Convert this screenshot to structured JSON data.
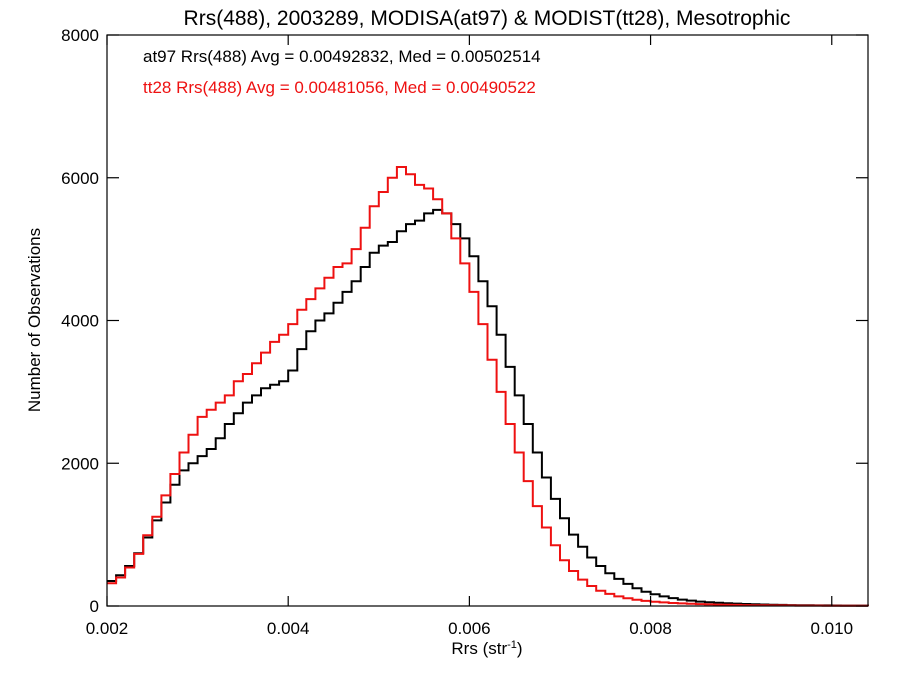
{
  "chart_data": {
    "type": "line",
    "step": true,
    "title": "Rrs(488), 2003289, MODISA(at97) & MODIST(tt28), Mesotrophic",
    "xlabel_main": "Rrs (str",
    "xlabel_sup": "-1",
    "xlabel_close": ")",
    "ylabel": "Number of Observations",
    "xlim": [
      0.002,
      0.0104
    ],
    "ylim": [
      0,
      8000
    ],
    "xticks": [
      0.002,
      0.004,
      0.006,
      0.008,
      0.01
    ],
    "xtick_labels": [
      "0.002",
      "0.004",
      "0.006",
      "0.008",
      "0.010"
    ],
    "yticks": [
      0,
      2000,
      4000,
      6000,
      8000
    ],
    "ytick_labels": [
      "0",
      "2000",
      "4000",
      "6000",
      "8000"
    ],
    "grid": false,
    "legend_position": "top-left",
    "legend": [
      {
        "text": "at97 Rrs(488) Avg = 0.00492832, Med = 0.00502514",
        "color": "#000000"
      },
      {
        "text": "tt28 Rrs(488) Avg = 0.00481056, Med = 0.00490522",
        "color": "#ee1111"
      }
    ],
    "series": [
      {
        "color": "#000000",
        "points": [
          [
            0.002,
            350
          ],
          [
            0.0021,
            430
          ],
          [
            0.0022,
            560
          ],
          [
            0.0023,
            740
          ],
          [
            0.0024,
            960
          ],
          [
            0.0025,
            1200
          ],
          [
            0.0026,
            1450
          ],
          [
            0.0027,
            1700
          ],
          [
            0.0028,
            1900
          ],
          [
            0.0029,
            2000
          ],
          [
            0.003,
            2100
          ],
          [
            0.0031,
            2200
          ],
          [
            0.0032,
            2350
          ],
          [
            0.0033,
            2550
          ],
          [
            0.0034,
            2700
          ],
          [
            0.0035,
            2850
          ],
          [
            0.0036,
            2950
          ],
          [
            0.0037,
            3050
          ],
          [
            0.0038,
            3100
          ],
          [
            0.0039,
            3150
          ],
          [
            0.004,
            3300
          ],
          [
            0.0041,
            3600
          ],
          [
            0.0042,
            3850
          ],
          [
            0.0043,
            4000
          ],
          [
            0.0044,
            4100
          ],
          [
            0.0045,
            4250
          ],
          [
            0.0046,
            4400
          ],
          [
            0.0047,
            4550
          ],
          [
            0.0048,
            4750
          ],
          [
            0.0049,
            4950
          ],
          [
            0.005,
            5050
          ],
          [
            0.0051,
            5100
          ],
          [
            0.0052,
            5250
          ],
          [
            0.0053,
            5350
          ],
          [
            0.0054,
            5400
          ],
          [
            0.0055,
            5500
          ],
          [
            0.0056,
            5550
          ],
          [
            0.0057,
            5500
          ],
          [
            0.0058,
            5350
          ],
          [
            0.0059,
            5150
          ],
          [
            0.006,
            4900
          ],
          [
            0.0061,
            4550
          ],
          [
            0.0062,
            4200
          ],
          [
            0.0063,
            3800
          ],
          [
            0.0064,
            3350
          ],
          [
            0.0065,
            2950
          ],
          [
            0.0066,
            2550
          ],
          [
            0.0067,
            2150
          ],
          [
            0.0068,
            1800
          ],
          [
            0.0069,
            1500
          ],
          [
            0.007,
            1230
          ],
          [
            0.0071,
            1000
          ],
          [
            0.0072,
            830
          ],
          [
            0.0073,
            680
          ],
          [
            0.0074,
            560
          ],
          [
            0.0075,
            460
          ],
          [
            0.0076,
            380
          ],
          [
            0.0077,
            310
          ],
          [
            0.0078,
            250
          ],
          [
            0.0079,
            200
          ],
          [
            0.008,
            165
          ],
          [
            0.0081,
            135
          ],
          [
            0.0082,
            110
          ],
          [
            0.0083,
            90
          ],
          [
            0.0084,
            75
          ],
          [
            0.0085,
            62
          ],
          [
            0.0086,
            52
          ],
          [
            0.0087,
            45
          ],
          [
            0.0088,
            38
          ],
          [
            0.0089,
            33
          ],
          [
            0.009,
            28
          ],
          [
            0.0091,
            24
          ],
          [
            0.0092,
            21
          ],
          [
            0.0093,
            18
          ],
          [
            0.0094,
            15
          ],
          [
            0.0095,
            13
          ],
          [
            0.0096,
            11
          ],
          [
            0.0097,
            10
          ],
          [
            0.0098,
            9
          ],
          [
            0.0099,
            8
          ],
          [
            0.01,
            7
          ],
          [
            0.0101,
            6
          ],
          [
            0.0102,
            5
          ],
          [
            0.0103,
            5
          ],
          [
            0.0104,
            4
          ]
        ]
      },
      {
        "color": "#ee1111",
        "points": [
          [
            0.002,
            320
          ],
          [
            0.0021,
            400
          ],
          [
            0.0022,
            540
          ],
          [
            0.0023,
            730
          ],
          [
            0.0024,
            990
          ],
          [
            0.0025,
            1250
          ],
          [
            0.0026,
            1550
          ],
          [
            0.0027,
            1850
          ],
          [
            0.0028,
            2150
          ],
          [
            0.0029,
            2400
          ],
          [
            0.003,
            2650
          ],
          [
            0.0031,
            2750
          ],
          [
            0.0032,
            2850
          ],
          [
            0.0033,
            2950
          ],
          [
            0.0034,
            3150
          ],
          [
            0.0035,
            3250
          ],
          [
            0.0036,
            3400
          ],
          [
            0.0037,
            3550
          ],
          [
            0.0038,
            3700
          ],
          [
            0.0039,
            3800
          ],
          [
            0.004,
            3950
          ],
          [
            0.0041,
            4150
          ],
          [
            0.0042,
            4300
          ],
          [
            0.0043,
            4450
          ],
          [
            0.0044,
            4600
          ],
          [
            0.0045,
            4750
          ],
          [
            0.0046,
            4800
          ],
          [
            0.0047,
            5000
          ],
          [
            0.0048,
            5300
          ],
          [
            0.0049,
            5600
          ],
          [
            0.005,
            5800
          ],
          [
            0.0051,
            6000
          ],
          [
            0.0052,
            6150
          ],
          [
            0.0053,
            6050
          ],
          [
            0.0054,
            5900
          ],
          [
            0.0055,
            5850
          ],
          [
            0.0056,
            5700
          ],
          [
            0.0057,
            5500
          ],
          [
            0.0058,
            5150
          ],
          [
            0.0059,
            4800
          ],
          [
            0.006,
            4400
          ],
          [
            0.0061,
            3950
          ],
          [
            0.0062,
            3450
          ],
          [
            0.0063,
            3000
          ],
          [
            0.0064,
            2550
          ],
          [
            0.0065,
            2150
          ],
          [
            0.0066,
            1750
          ],
          [
            0.0067,
            1400
          ],
          [
            0.0068,
            1100
          ],
          [
            0.0069,
            850
          ],
          [
            0.007,
            640
          ],
          [
            0.0071,
            490
          ],
          [
            0.0072,
            370
          ],
          [
            0.0073,
            280
          ],
          [
            0.0074,
            215
          ],
          [
            0.0075,
            170
          ],
          [
            0.0076,
            135
          ],
          [
            0.0077,
            108
          ],
          [
            0.0078,
            88
          ],
          [
            0.0079,
            72
          ],
          [
            0.008,
            60
          ],
          [
            0.0081,
            50
          ],
          [
            0.0082,
            42
          ],
          [
            0.0083,
            36
          ],
          [
            0.0084,
            31
          ],
          [
            0.0085,
            27
          ],
          [
            0.0086,
            23
          ],
          [
            0.0087,
            20
          ],
          [
            0.0088,
            17
          ],
          [
            0.0089,
            15
          ],
          [
            0.009,
            13
          ],
          [
            0.0091,
            11
          ],
          [
            0.0092,
            10
          ],
          [
            0.0093,
            9
          ],
          [
            0.0094,
            8
          ],
          [
            0.0095,
            7
          ],
          [
            0.0096,
            6
          ],
          [
            0.0097,
            5
          ],
          [
            0.0098,
            5
          ],
          [
            0.0099,
            4
          ],
          [
            0.01,
            4
          ],
          [
            0.0101,
            3
          ],
          [
            0.0102,
            3
          ],
          [
            0.0103,
            3
          ],
          [
            0.0104,
            2
          ]
        ]
      }
    ]
  }
}
